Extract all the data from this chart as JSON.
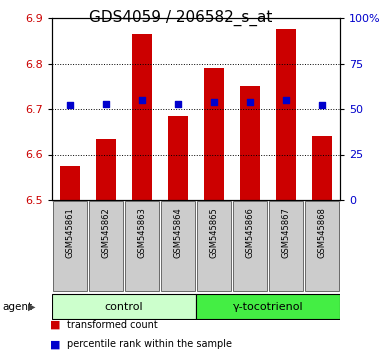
{
  "title": "GDS4059 / 206582_s_at",
  "samples": [
    "GSM545861",
    "GSM545862",
    "GSM545863",
    "GSM545864",
    "GSM545865",
    "GSM545866",
    "GSM545867",
    "GSM545868"
  ],
  "transformed_counts": [
    6.575,
    6.635,
    6.865,
    6.685,
    6.79,
    6.75,
    6.875,
    6.64
  ],
  "percentile_ranks": [
    52,
    53,
    55,
    53,
    54,
    54,
    55,
    52
  ],
  "ylim_left": [
    6.5,
    6.9
  ],
  "ylim_right": [
    0,
    100
  ],
  "yticks_left": [
    6.5,
    6.6,
    6.7,
    6.8,
    6.9
  ],
  "yticks_right": [
    0,
    25,
    50,
    75,
    100
  ],
  "yticklabels_right": [
    "0",
    "25",
    "50",
    "75",
    "100%"
  ],
  "bar_color": "#cc0000",
  "dot_color": "#0000cc",
  "bar_bottom": 6.5,
  "groups": [
    {
      "label": "control",
      "indices": [
        0,
        1,
        2,
        3
      ],
      "color": "#ccffcc"
    },
    {
      "label": "γ-tocotrienol",
      "indices": [
        4,
        5,
        6,
        7
      ],
      "color": "#44ee44"
    }
  ],
  "agent_label": "agent",
  "legend_items": [
    {
      "color": "#cc0000",
      "label": "transformed count"
    },
    {
      "color": "#0000cc",
      "label": "percentile rank within the sample"
    }
  ],
  "grid_color": "#000000",
  "plot_bg": "#ffffff",
  "sample_box_bg": "#cccccc",
  "title_fontsize": 11,
  "axis_tick_fontsize": 8,
  "sample_label_fontsize": 6,
  "group_label_fontsize": 8,
  "legend_fontsize": 7
}
